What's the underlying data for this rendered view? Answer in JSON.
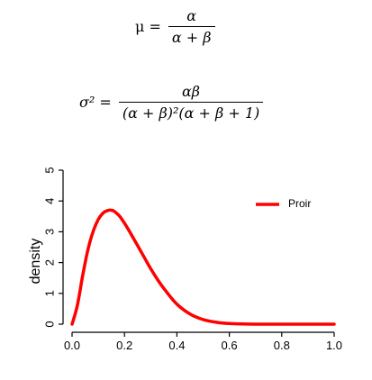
{
  "equations": {
    "mean": {
      "lhs": "μ =",
      "numerator": "α",
      "denominator": "α + β"
    },
    "variance": {
      "lhs": "σ² =",
      "numerator": "αβ",
      "denominator": "(α + β)²(α + β + 1)"
    }
  },
  "chart_data": {
    "type": "line",
    "title": "",
    "xlabel": "",
    "ylabel": "density",
    "xlim": [
      0,
      1
    ],
    "ylim": [
      0,
      5
    ],
    "xticks": [
      0.0,
      0.2,
      0.4,
      0.6,
      0.8,
      1.0
    ],
    "xtick_labels": [
      "0.0",
      "0.2",
      "0.4",
      "0.6",
      "0.8",
      "1.0"
    ],
    "yticks": [
      0,
      1,
      2,
      3,
      4,
      5
    ],
    "ytick_labels": [
      "0",
      "1",
      "2",
      "3",
      "4",
      "5"
    ],
    "grid": false,
    "legend_position": "top-right",
    "series": [
      {
        "name": "Proir",
        "color": "#ff0000",
        "x": [
          0.0,
          0.02,
          0.04,
          0.06,
          0.08,
          0.1,
          0.12,
          0.14,
          0.15,
          0.16,
          0.18,
          0.2,
          0.22,
          0.25,
          0.28,
          0.3,
          0.33,
          0.36,
          0.4,
          0.45,
          0.5,
          0.55,
          0.6,
          0.7,
          0.8,
          0.9,
          1.0
        ],
        "y": [
          0.0,
          0.6,
          1.55,
          2.4,
          3.0,
          3.4,
          3.62,
          3.7,
          3.7,
          3.67,
          3.52,
          3.28,
          3.0,
          2.55,
          2.1,
          1.8,
          1.4,
          1.05,
          0.65,
          0.33,
          0.15,
          0.06,
          0.02,
          0.0,
          0.0,
          0.0,
          0.0
        ]
      }
    ]
  }
}
